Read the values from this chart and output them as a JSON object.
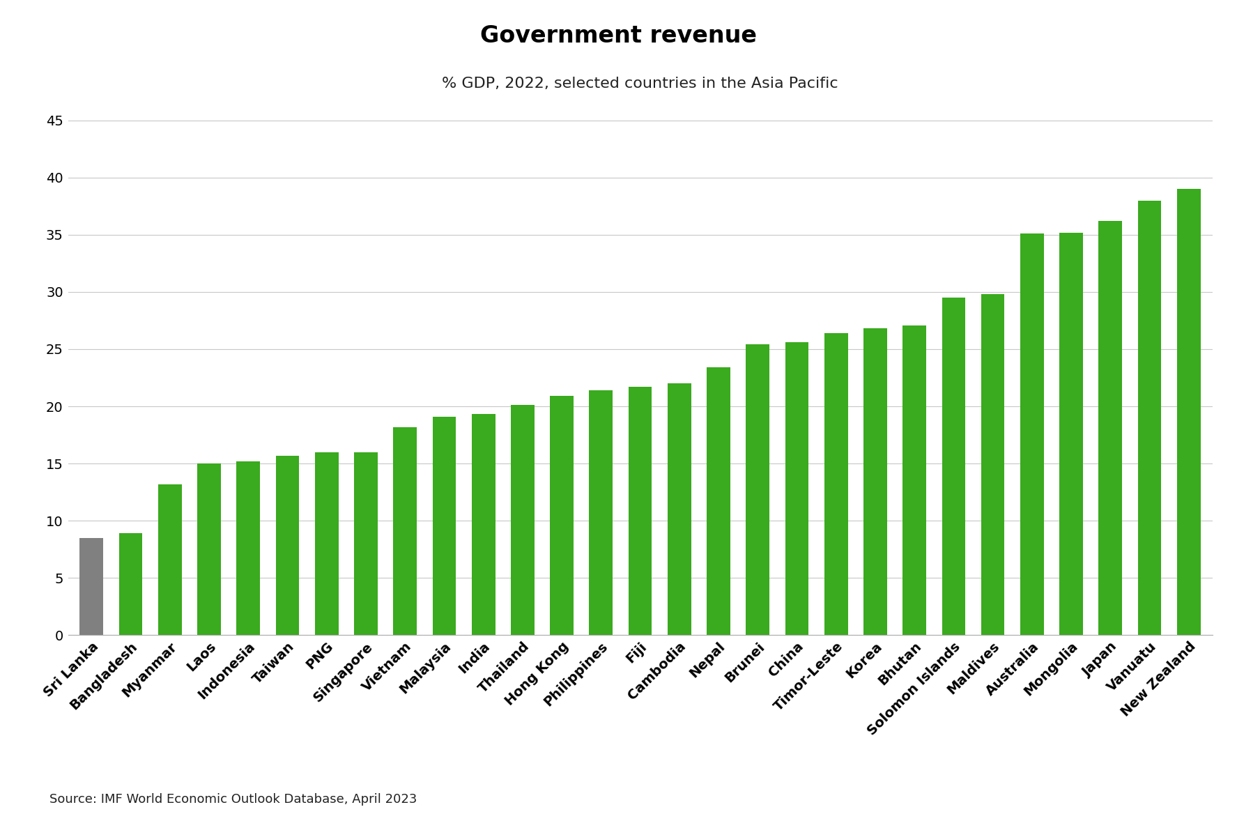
{
  "title": "Government revenue",
  "subtitle": "% GDP, 2022, selected countries in the Asia Pacific",
  "source": "Source: IMF World Economic Outlook Database, April 2023",
  "categories": [
    "Sri Lanka",
    "Bangladesh",
    "Myanmar",
    "Laos",
    "Indonesia",
    "Taiwan",
    "PNG",
    "Singapore",
    "Vietnam",
    "Malaysia",
    "India",
    "Thailand",
    "Hong Kong",
    "Philippines",
    "Fiji",
    "Cambodia",
    "Nepal",
    "Brunei",
    "China",
    "Timor-Leste",
    "Korea",
    "Bhutan",
    "Solomon Islands",
    "Maldives",
    "Australia",
    "Mongolia",
    "Japan",
    "Vanuatu",
    "New Zealand"
  ],
  "values": [
    8.5,
    8.9,
    13.2,
    15.0,
    15.2,
    15.7,
    16.0,
    16.0,
    18.2,
    19.1,
    19.3,
    20.1,
    20.9,
    21.4,
    21.7,
    22.0,
    23.4,
    25.4,
    25.6,
    26.4,
    26.8,
    27.1,
    29.5,
    29.8,
    35.1,
    35.2,
    36.2,
    38.0,
    39.0
  ],
  "bar_colors": [
    "#808080",
    "#3aaa1e",
    "#3aaa1e",
    "#3aaa1e",
    "#3aaa1e",
    "#3aaa1e",
    "#3aaa1e",
    "#3aaa1e",
    "#3aaa1e",
    "#3aaa1e",
    "#3aaa1e",
    "#3aaa1e",
    "#3aaa1e",
    "#3aaa1e",
    "#3aaa1e",
    "#3aaa1e",
    "#3aaa1e",
    "#3aaa1e",
    "#3aaa1e",
    "#3aaa1e",
    "#3aaa1e",
    "#3aaa1e",
    "#3aaa1e",
    "#3aaa1e",
    "#3aaa1e",
    "#3aaa1e",
    "#3aaa1e",
    "#3aaa1e",
    "#3aaa1e"
  ],
  "ylim": [
    0,
    47
  ],
  "yticks": [
    0,
    5,
    10,
    15,
    20,
    25,
    30,
    35,
    40,
    45
  ],
  "background_color": "#ffffff",
  "grid_color": "#c8c8c8",
  "title_fontsize": 24,
  "subtitle_fontsize": 16,
  "tick_fontsize": 14,
  "source_fontsize": 13,
  "bar_width": 0.6
}
